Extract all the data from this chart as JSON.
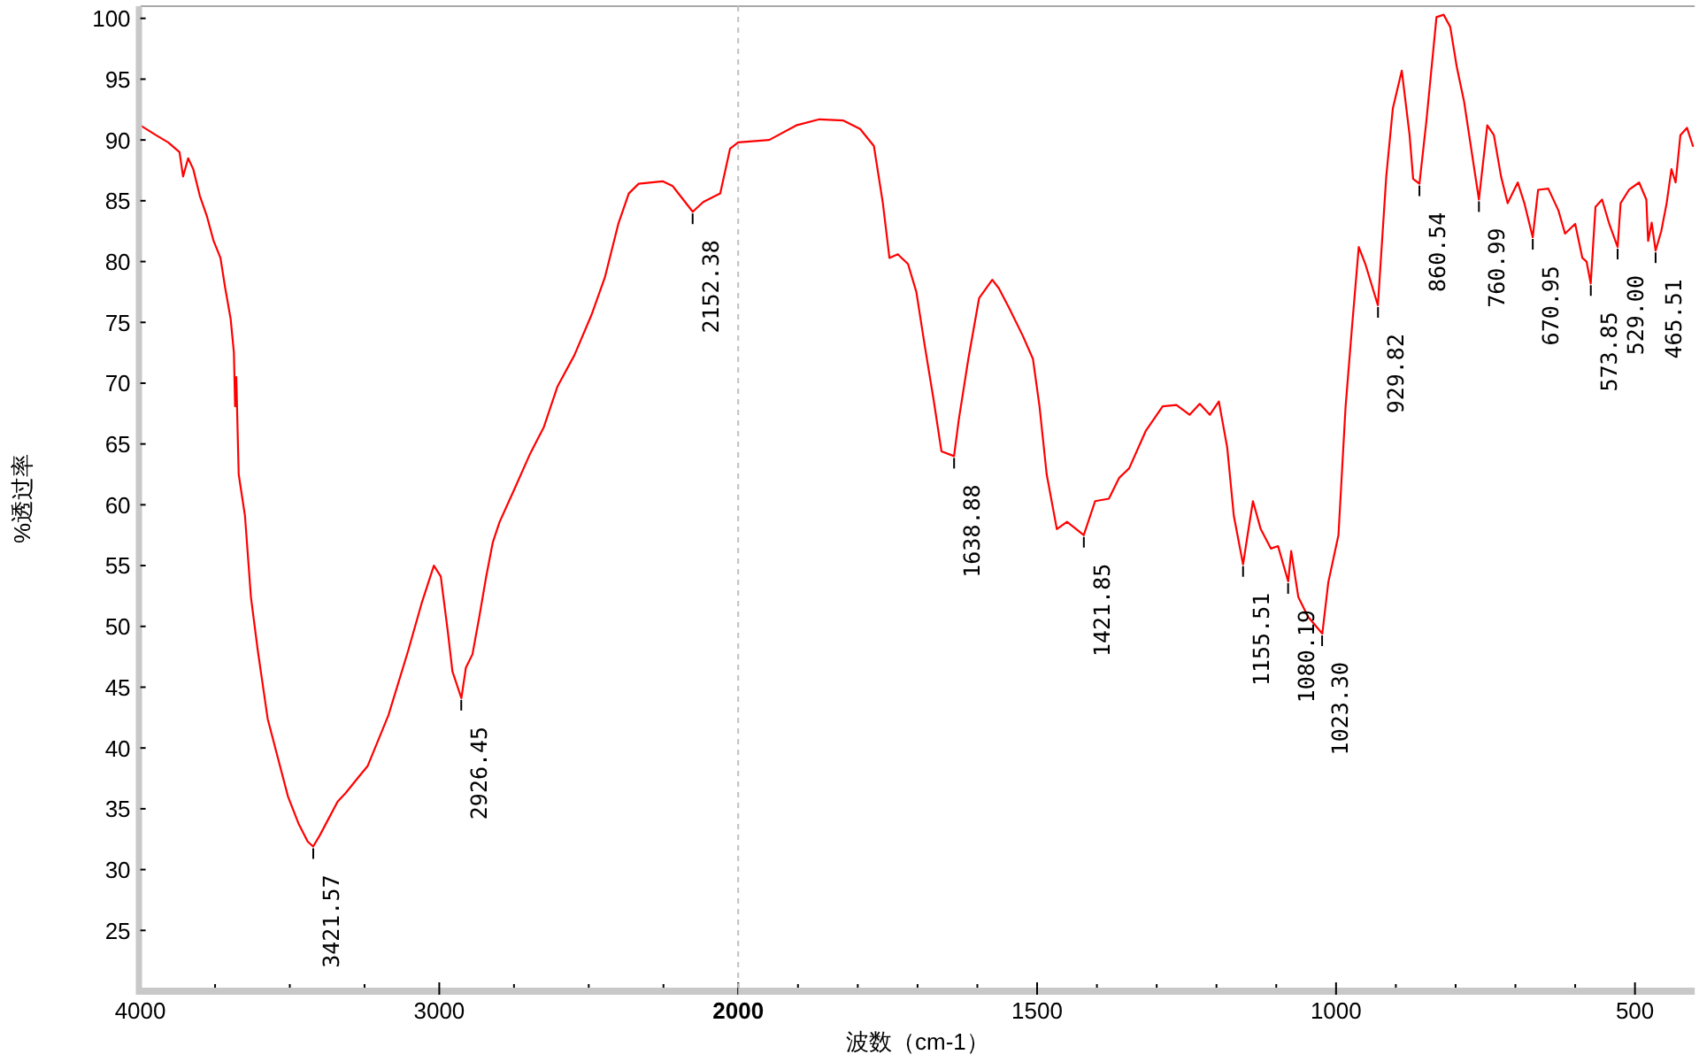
{
  "chart_data": [
    {
      "type": "line",
      "ylabel": "%透过率",
      "xlim": [
        4000,
        2000
      ],
      "ylim": [
        20,
        101
      ],
      "xticks": [
        4000,
        {
          "value": 3750,
          "label": null
        },
        {
          "value": 3500,
          "label": null
        },
        {
          "value": 3250,
          "label": null
        },
        3000,
        {
          "value": 2750,
          "label": null
        },
        {
          "value": 2500,
          "label": null
        },
        {
          "value": 2250,
          "label": null
        },
        2000
      ],
      "yticks": [
        25,
        30,
        35,
        40,
        45,
        50,
        55,
        60,
        65,
        70,
        75,
        80,
        85,
        90,
        95,
        100
      ],
      "series": [
        {
          "color": "#ff0000",
          "x": [
            4000,
            3948,
            3907,
            3869,
            3857,
            3840,
            3823,
            3801,
            3777,
            3755,
            3732,
            3716,
            3698,
            3687,
            3683,
            3679,
            3671,
            3650,
            3630,
            3607,
            3574,
            3539,
            3506,
            3471,
            3440,
            3422,
            3400,
            3370,
            3340,
            3313,
            3267,
            3240,
            3170,
            3104,
            3059,
            3018,
            2995,
            2972,
            2956,
            2926,
            2911,
            2889,
            2866,
            2843,
            2821,
            2798,
            2752,
            2696,
            2650,
            2605,
            2548,
            2491,
            2446,
            2401,
            2366,
            2333,
            2253,
            2219,
            2152,
            2117,
            2060,
            2027,
            2000
          ],
          "values": [
            91.2,
            90.4,
            89.8,
            89.0,
            87.0,
            88.5,
            87.6,
            85.4,
            83.7,
            81.7,
            80.3,
            77.8,
            75.3,
            72.5,
            68.1,
            70.5,
            62.5,
            59.1,
            52.4,
            48.0,
            42.4,
            39.1,
            36.0,
            33.8,
            32.3,
            31.9,
            32.8,
            34.2,
            35.6,
            36.3,
            37.7,
            38.5,
            42.7,
            48.0,
            51.9,
            55.0,
            54.1,
            49.7,
            46.3,
            44.1,
            46.6,
            47.7,
            50.8,
            54.1,
            56.9,
            58.6,
            61.1,
            64.2,
            66.4,
            69.7,
            72.3,
            75.6,
            78.7,
            83.1,
            85.6,
            86.4,
            86.6,
            86.2,
            84.1,
            84.9,
            85.6,
            89.3,
            89.8
          ]
        }
      ],
      "annotations": [
        {
          "text": "3421.57",
          "x": 3421.57,
          "y": 31.9
        },
        {
          "text": "2926.45",
          "x": 2926.45,
          "y": 44.1
        },
        {
          "text": "2152.38",
          "x": 2152.38,
          "y": 84.1
        }
      ]
    },
    {
      "type": "line",
      "xlabel": "波数（cm-1）",
      "xlim": [
        2000,
        400
      ],
      "ylim": [
        20,
        101
      ],
      "tick_labels": "x",
      "xticks": [
        {
          "value": 1900,
          "label": null
        },
        {
          "value": 1800,
          "label": null
        },
        {
          "value": 1700,
          "label": null
        },
        {
          "value": 1600,
          "label": null
        },
        1500,
        {
          "value": 1400,
          "label": null
        },
        {
          "value": 1300,
          "label": null
        },
        {
          "value": 1200,
          "label": null
        },
        {
          "value": 1100,
          "label": null
        },
        1000,
        {
          "value": 900,
          "label": null
        },
        {
          "value": 800,
          "label": null
        },
        {
          "value": 700,
          "label": null
        },
        {
          "value": 600,
          "label": null
        },
        500
      ],
      "ref_lines": [
        {
          "axis": "x",
          "value": 2000,
          "color": "#c0c0c0",
          "line_style": "dashed"
        }
      ],
      "series": [
        {
          "color": "#ff0000",
          "x": [
            2000,
            1948,
            1903,
            1864,
            1824,
            1796,
            1773,
            1758,
            1747,
            1733,
            1716,
            1702,
            1688,
            1673,
            1660,
            1639,
            1631,
            1615,
            1597,
            1575,
            1564,
            1547,
            1524,
            1507,
            1496,
            1484,
            1467,
            1450,
            1422,
            1403,
            1380,
            1363,
            1346,
            1318,
            1290,
            1267,
            1245,
            1228,
            1211,
            1196,
            1182,
            1171,
            1155.5,
            1148,
            1139,
            1126,
            1109,
            1097,
            1080,
            1075,
            1063,
            1047,
            1023,
            1013,
            996,
            984,
            973,
            962,
            951,
            930,
            916,
            905,
            890,
            877,
            871,
            860.5,
            849,
            832,
            820,
            809,
            798,
            786,
            761,
            747,
            736,
            724,
            713,
            696,
            685,
            671,
            662,
            645,
            628,
            617,
            600,
            588,
            581,
            574,
            566,
            555,
            543,
            529,
            524,
            510,
            493,
            481,
            478,
            472,
            465.5,
            456,
            447,
            439,
            432,
            424,
            413,
            403
          ],
          "values": [
            89.8,
            90.0,
            91.2,
            91.7,
            91.6,
            90.9,
            89.5,
            84.8,
            80.3,
            80.6,
            79.8,
            77.5,
            73.1,
            68.6,
            64.4,
            64.0,
            67.0,
            72.0,
            77.0,
            78.5,
            77.8,
            76.2,
            73.9,
            72.0,
            68.1,
            62.5,
            58.0,
            58.6,
            57.5,
            60.3,
            60.5,
            62.2,
            63.0,
            66.1,
            68.1,
            68.2,
            67.4,
            68.3,
            67.4,
            68.5,
            64.7,
            59.1,
            55.1,
            57.5,
            60.3,
            58.0,
            56.4,
            56.6,
            53.7,
            56.2,
            52.4,
            50.8,
            49.4,
            53.6,
            57.5,
            68.1,
            74.8,
            81.2,
            79.8,
            76.4,
            87.0,
            92.6,
            95.7,
            90.4,
            86.8,
            86.4,
            91.5,
            100.1,
            100.3,
            99.3,
            96.0,
            93.2,
            85.1,
            91.2,
            90.4,
            87.0,
            84.8,
            86.5,
            84.8,
            82.0,
            85.9,
            86.0,
            84.2,
            82.3,
            83.1,
            80.3,
            80.0,
            78.2,
            84.5,
            85.1,
            83.1,
            81.2,
            84.8,
            85.9,
            86.5,
            85.1,
            81.7,
            83.2,
            80.9,
            82.5,
            84.8,
            87.6,
            86.5,
            90.4,
            91.0,
            89.5
          ]
        }
      ],
      "annotations": [
        {
          "text": "1638.88",
          "x": 1638.88,
          "y": 64.0
        },
        {
          "text": "1421.85",
          "x": 1421.85,
          "y": 57.5
        },
        {
          "text": "1155.51",
          "x": 1155.51,
          "y": 55.1
        },
        {
          "text": "1080.19",
          "x": 1080.19,
          "y": 53.7
        },
        {
          "text": "1023.30",
          "x": 1023.3,
          "y": 49.4
        },
        {
          "text": "929.82",
          "x": 929.82,
          "y": 76.4
        },
        {
          "text": "860.54",
          "x": 860.54,
          "y": 86.4
        },
        {
          "text": "760.99",
          "x": 760.99,
          "y": 85.1
        },
        {
          "text": "670.95",
          "x": 670.95,
          "y": 82.0
        },
        {
          "text": "573.85",
          "x": 573.85,
          "y": 78.2
        },
        {
          "text": "529.00",
          "x": 529,
          "y": 81.2
        },
        {
          "text": "465.51",
          "x": 465.51,
          "y": 80.9
        }
      ]
    }
  ]
}
